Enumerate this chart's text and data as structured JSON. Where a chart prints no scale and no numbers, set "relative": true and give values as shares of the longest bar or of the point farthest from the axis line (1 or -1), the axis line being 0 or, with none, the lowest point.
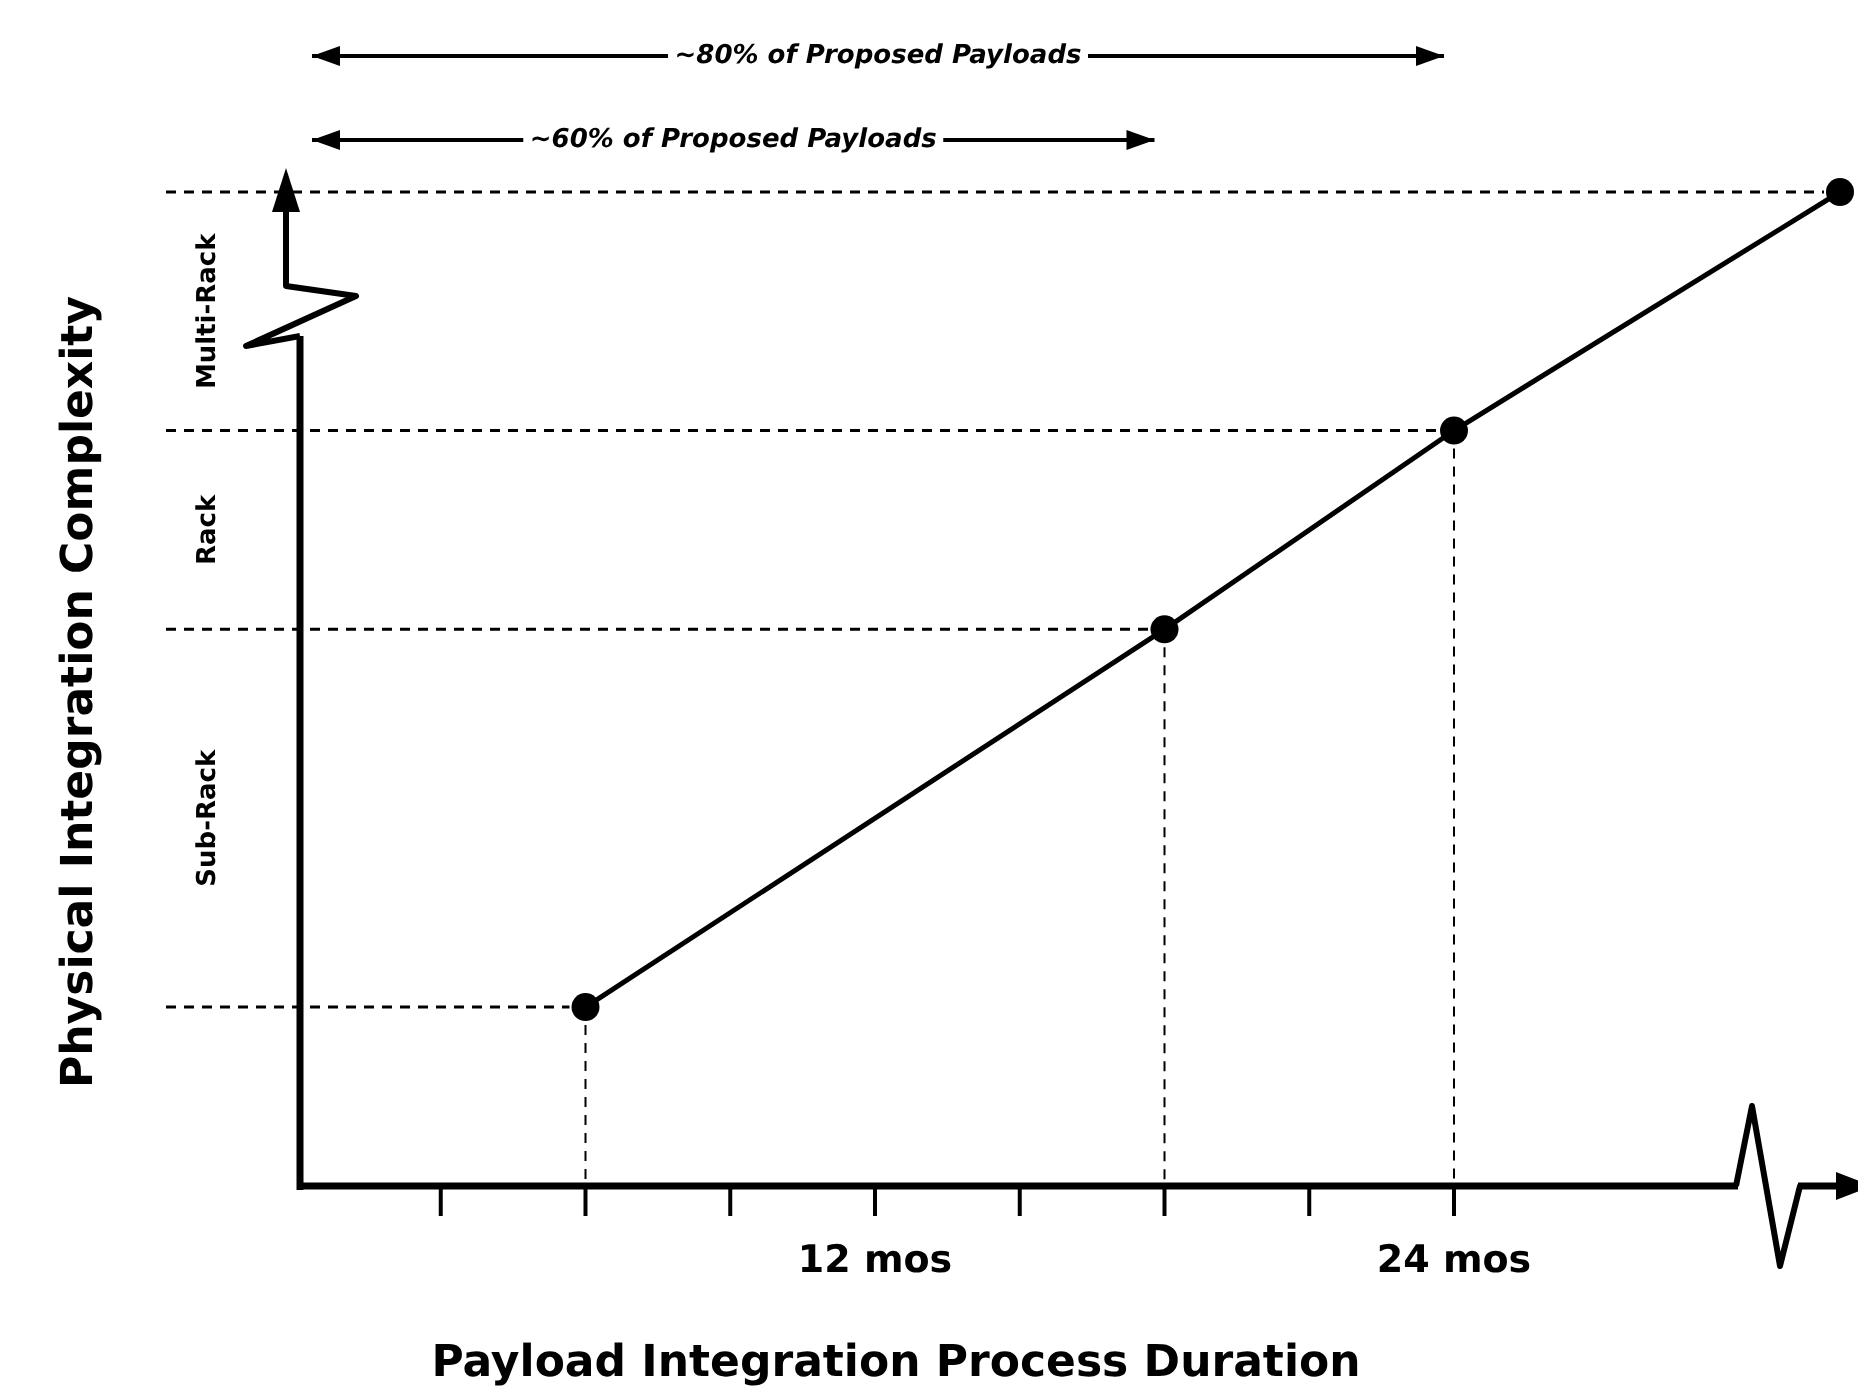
{
  "chart_data": {
    "type": "line",
    "xlabel": "Payload Integration Process Duration",
    "ylabel": "Physical Integration Complexity",
    "relative": true,
    "x": [
      6,
      18,
      24,
      32
    ],
    "series": [
      {
        "color": "#000000",
        "values": [
          0.18,
          0.56,
          0.76,
          1
        ]
      }
    ],
    "xlim": [
      0,
      32
    ],
    "xticks": [
      {
        "value": 3,
        "label": null
      },
      {
        "value": 6,
        "label": null
      },
      {
        "value": 9,
        "label": null
      },
      {
        "value": 12,
        "label": "12 mos"
      },
      {
        "value": 15,
        "label": null
      },
      {
        "value": 18,
        "label": null
      },
      {
        "value": 21,
        "label": null
      },
      {
        "value": 24,
        "label": "24 mos"
      }
    ],
    "ref_lines": [
      {
        "axis": "y",
        "value": 0.18,
        "line_style": "dashed",
        "color": "#000000"
      },
      {
        "axis": "y",
        "value": 0.56,
        "line_style": "dashed",
        "color": "#000000"
      },
      {
        "axis": "y",
        "value": 0.76,
        "line_style": "dashed",
        "color": "#000000"
      },
      {
        "axis": "y",
        "value": 1,
        "line_style": "dashed",
        "color": "#000000"
      },
      {
        "axis": "x",
        "value": 6,
        "line_style": "dashed",
        "color": "#000000"
      },
      {
        "axis": "x",
        "value": 18,
        "line_style": "dashed",
        "color": "#000000"
      },
      {
        "axis": "x",
        "value": 24,
        "line_style": "dashed",
        "color": "#000000"
      }
    ],
    "annotations": [
      "~80% of Proposed Payloads",
      "~60% of Proposed Payloads",
      "Sub-Rack",
      "Rack",
      "Multi-Rack"
    ],
    "marker": "circle",
    "line_style": "solid"
  }
}
